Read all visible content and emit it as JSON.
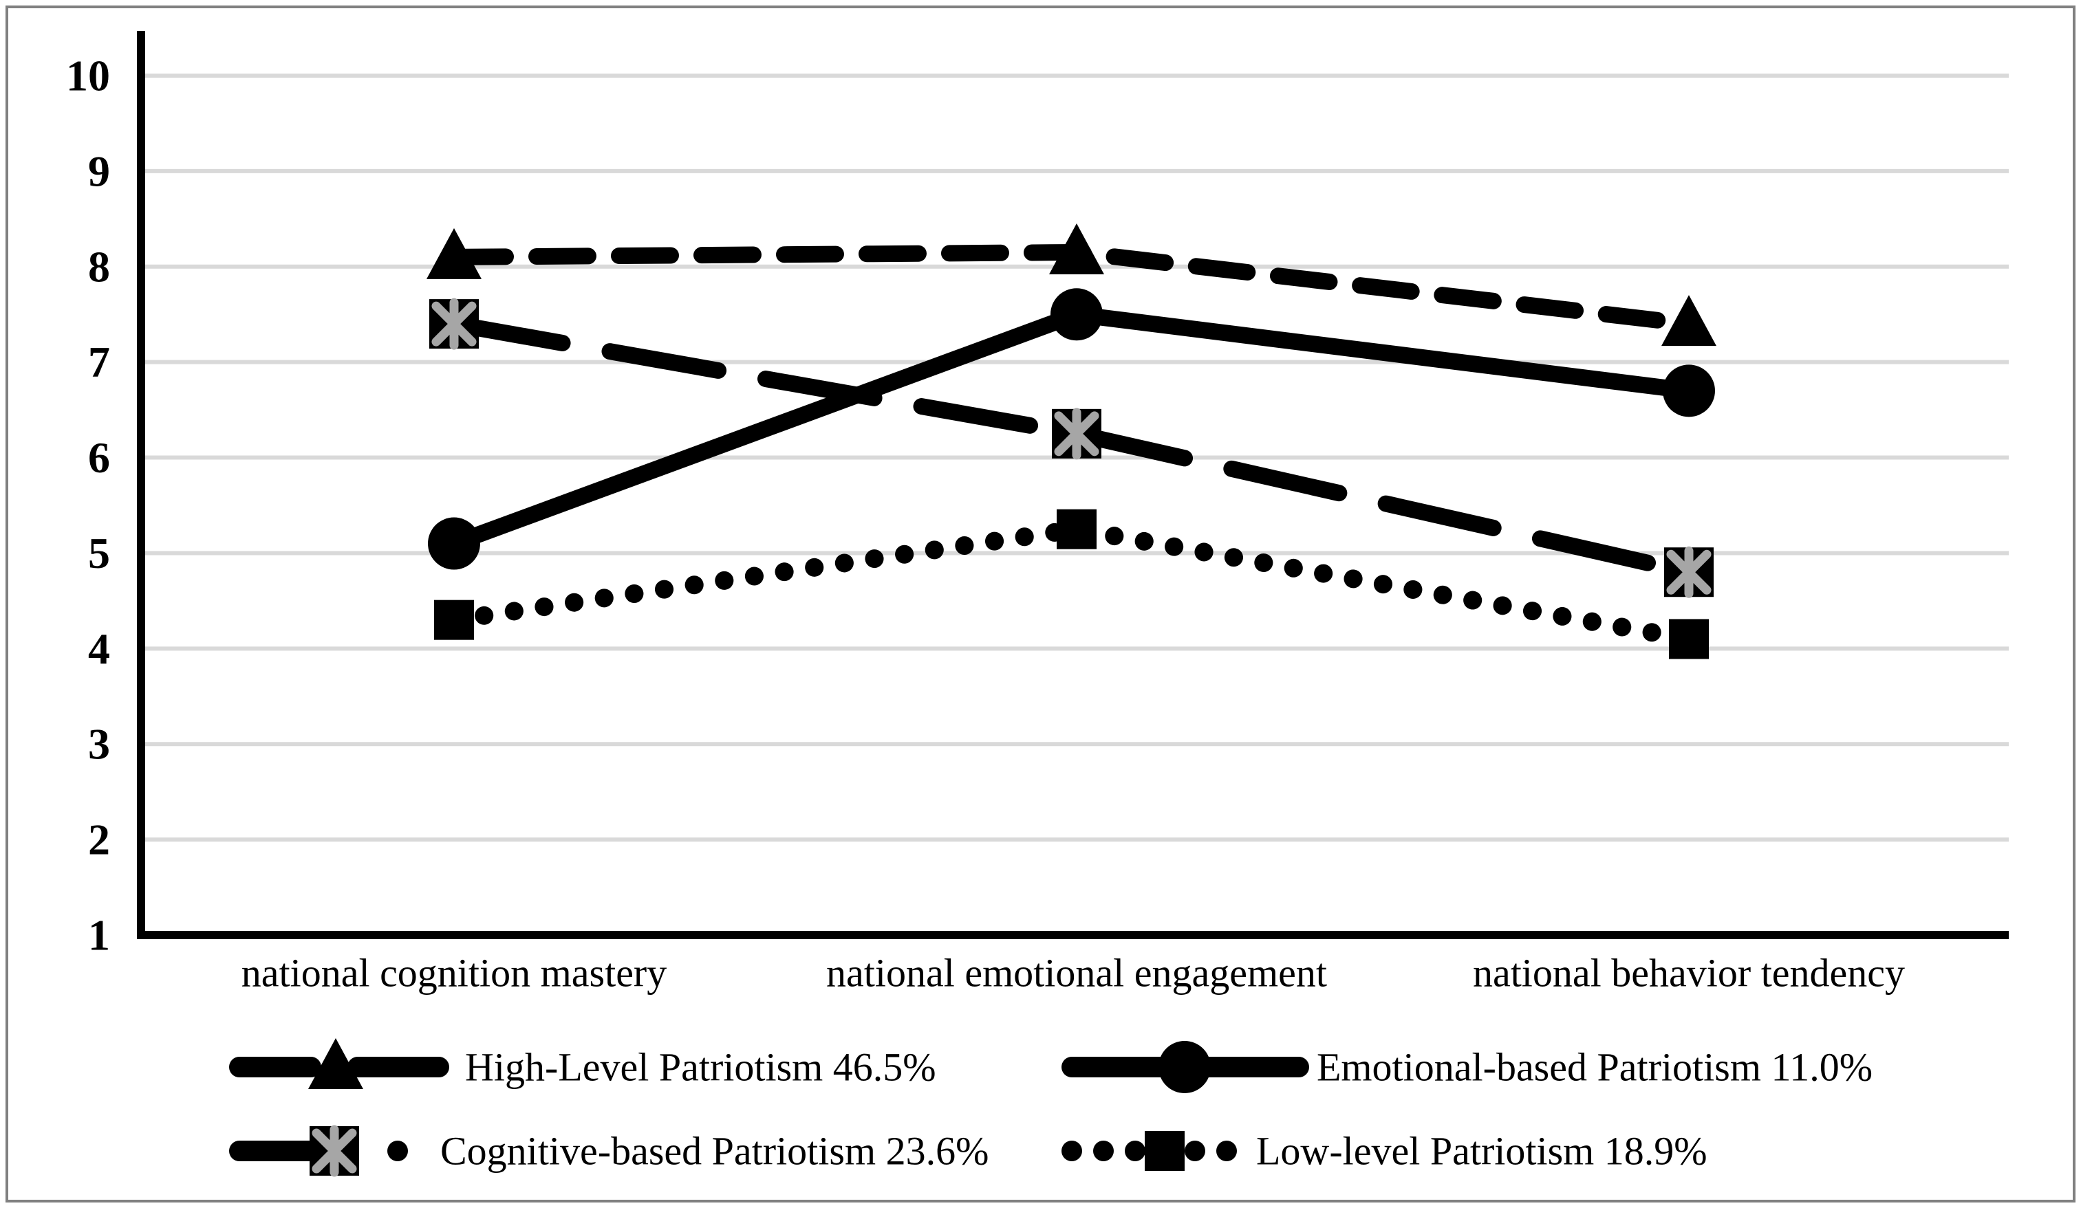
{
  "chart_data": {
    "type": "line",
    "title": "",
    "xlabel": "",
    "ylabel": "",
    "categories": [
      "national cognition mastery",
      "national emotional engagement",
      "national behavior tendency"
    ],
    "series": [
      {
        "name": "High-Level Patriotism 46.5%",
        "values": [
          8.1,
          8.15,
          7.4
        ],
        "line_style": "dashed",
        "marker": "triangle",
        "color": "#000000"
      },
      {
        "name": "Emotional-based Patriotism 11.0%",
        "values": [
          5.1,
          7.5,
          6.7
        ],
        "line_style": "solid",
        "marker": "circle",
        "color": "#000000"
      },
      {
        "name": "Cognitive-based Patriotism 23.6%",
        "values": [
          7.4,
          6.25,
          4.8
        ],
        "line_style": "long-dash",
        "marker": "asterisk-square",
        "color": "#000000"
      },
      {
        "name": "Low-level Patriotism 18.9%",
        "values": [
          4.3,
          5.25,
          4.1
        ],
        "line_style": "dotted",
        "marker": "square",
        "color": "#000000"
      }
    ],
    "ylim": [
      1,
      10
    ],
    "yticks": [
      1,
      2,
      3,
      4,
      5,
      6,
      7,
      8,
      9,
      10
    ],
    "grid": "horizontal",
    "legend_position": "bottom-two-rows",
    "colors": {
      "line": "#000000",
      "gridline": "#d9d9d9",
      "marker_accent": "#a6a6a6",
      "frame_border": "#808080",
      "background": "#ffffff"
    }
  }
}
